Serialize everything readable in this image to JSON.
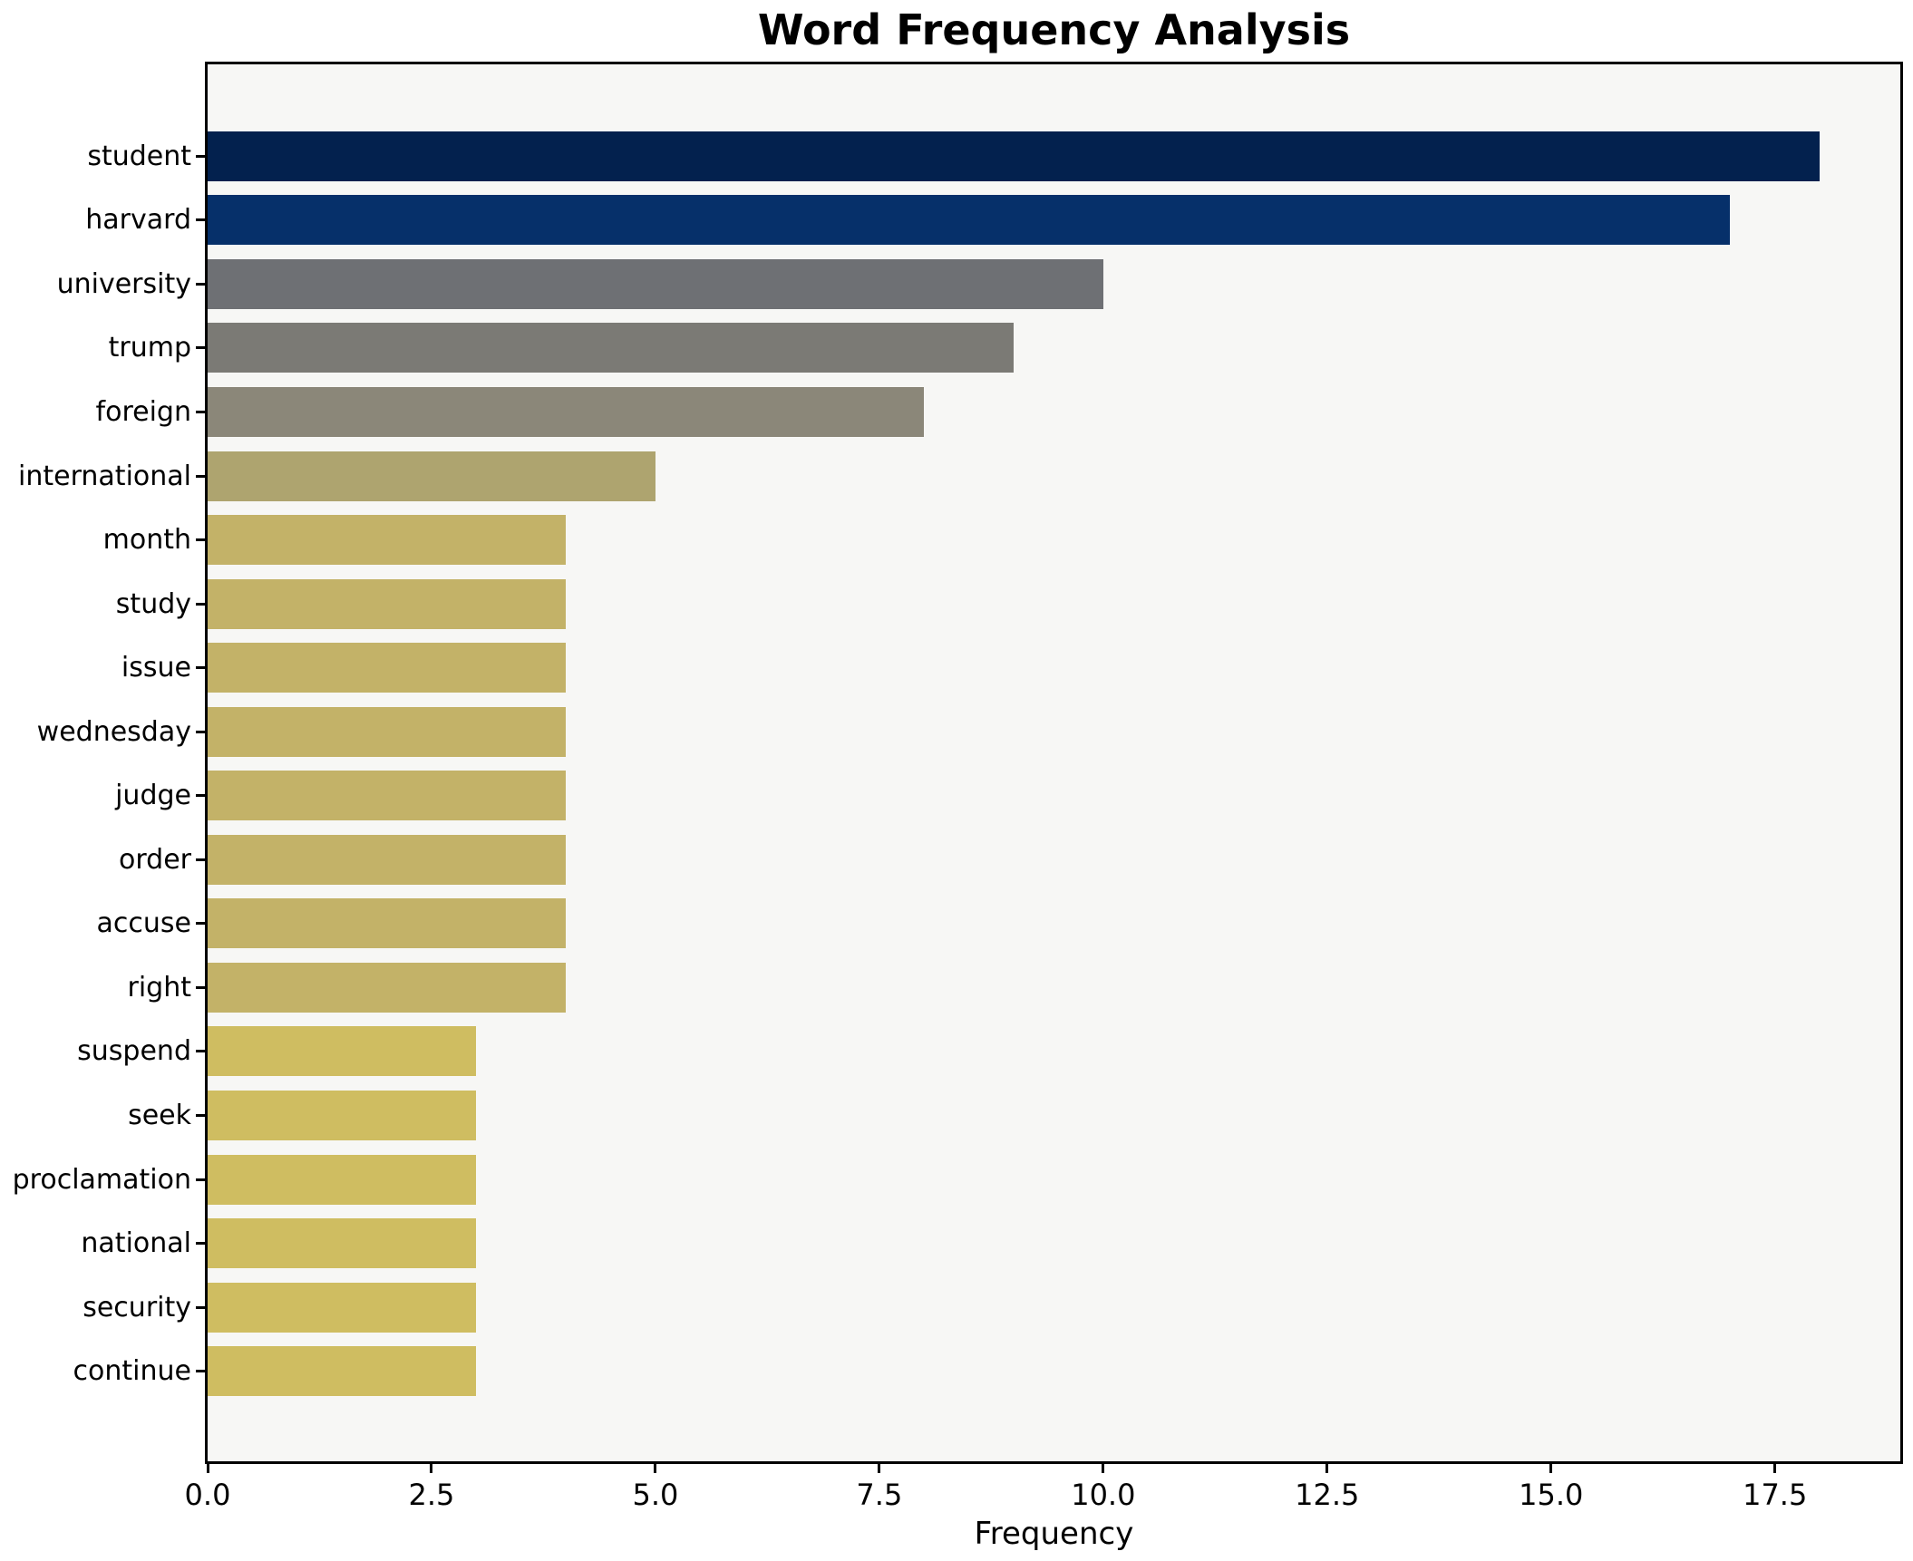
{
  "figure": {
    "background": "#ffffff",
    "plot_background": "#f7f7f5",
    "spine_color": "#000000",
    "text_color": "#000000"
  },
  "chart_data": {
    "type": "bar",
    "orientation": "horizontal",
    "title": "Word Frequency Analysis",
    "xlabel": "Frequency",
    "ylabel": "",
    "grid": false,
    "legend": false,
    "xlim": [
      0,
      18.9
    ],
    "x_ticks": [
      0.0,
      2.5,
      5.0,
      7.5,
      10.0,
      12.5,
      15.0,
      17.5
    ],
    "x_tick_labels": [
      "0.0",
      "2.5",
      "5.0",
      "7.5",
      "10.0",
      "12.5",
      "15.0",
      "17.5"
    ],
    "categories": [
      "student",
      "harvard",
      "university",
      "trump",
      "foreign",
      "international",
      "month",
      "study",
      "issue",
      "wednesday",
      "judge",
      "order",
      "accuse",
      "right",
      "suspend",
      "seek",
      "proclamation",
      "national",
      "security",
      "continue"
    ],
    "values": [
      18,
      17,
      10,
      9,
      8,
      5,
      4,
      4,
      4,
      4,
      4,
      4,
      4,
      4,
      3,
      3,
      3,
      3,
      3,
      3
    ],
    "bar_colors": [
      "#03214e",
      "#06306a",
      "#6e7074",
      "#7b7a75",
      "#8b8779",
      "#aea46f",
      "#c3b268",
      "#c3b268",
      "#c3b268",
      "#c3b268",
      "#c3b268",
      "#c3b268",
      "#c3b268",
      "#c3b268",
      "#cfbd61",
      "#cfbd61",
      "#cfbd61",
      "#cfbd61",
      "#cfbd61",
      "#cfbd61"
    ]
  }
}
